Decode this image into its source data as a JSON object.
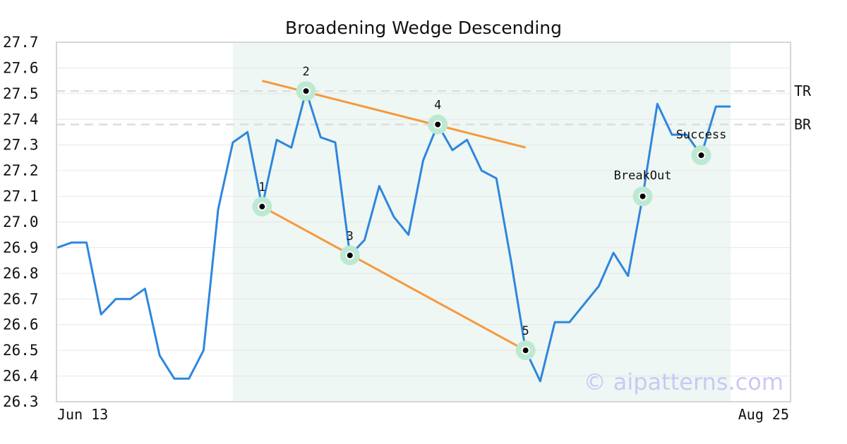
{
  "chart_data": {
    "type": "line",
    "title": "Broadening Wedge Descending",
    "xlabel": "",
    "ylabel": "",
    "ylim": [
      26.3,
      27.7
    ],
    "yticks": [
      "26.3",
      "26.4",
      "26.5",
      "26.6",
      "26.7",
      "26.8",
      "26.9",
      "27.0",
      "27.1",
      "27.2",
      "27.3",
      "27.4",
      "27.5",
      "27.6",
      "27.7"
    ],
    "x_start_label": "Jun 13",
    "x_end_label": "Aug 25",
    "grid": true,
    "series": [
      {
        "values": [
          26.9,
          26.92,
          26.92,
          26.64,
          26.7,
          26.7,
          26.74,
          26.48,
          26.39,
          26.39,
          26.5,
          27.05,
          27.31,
          27.35,
          27.06,
          27.32,
          27.29,
          27.51,
          27.33,
          27.31,
          26.87,
          26.93,
          27.14,
          27.02,
          26.95,
          27.24,
          27.38,
          27.28,
          27.32,
          27.2,
          27.17,
          26.85,
          26.5,
          26.38,
          26.61,
          26.61,
          26.68,
          26.75,
          26.88,
          26.79,
          27.1,
          27.46,
          27.34,
          27.34,
          27.26,
          27.45,
          27.45
        ],
        "color": "#2e86de"
      }
    ],
    "pattern_zone": {
      "start_index": 12,
      "end_index": 46,
      "color": "#eef7f3"
    },
    "reference_lines": [
      {
        "label": "TR",
        "value": 27.51
      },
      {
        "label": "BR",
        "value": 27.38
      }
    ],
    "trend_lines": [
      {
        "name": "upper",
        "x": [
          14,
          32
        ],
        "y": [
          27.55,
          27.29
        ],
        "color": "#f5993d"
      },
      {
        "name": "lower",
        "x": [
          14,
          32
        ],
        "y": [
          27.06,
          26.5
        ],
        "color": "#f5993d"
      }
    ],
    "points": [
      {
        "label": "1",
        "index": 14,
        "value": 27.06
      },
      {
        "label": "2",
        "index": 17,
        "value": 27.51
      },
      {
        "label": "3",
        "index": 20,
        "value": 26.87
      },
      {
        "label": "4",
        "index": 26,
        "value": 27.38
      },
      {
        "label": "5",
        "index": 32,
        "value": 26.5
      },
      {
        "label": "BreakOut",
        "index": 40,
        "value": 27.1
      },
      {
        "label": "Success",
        "index": 44,
        "value": 27.26
      }
    ],
    "watermark": "© aipatterns.com"
  }
}
